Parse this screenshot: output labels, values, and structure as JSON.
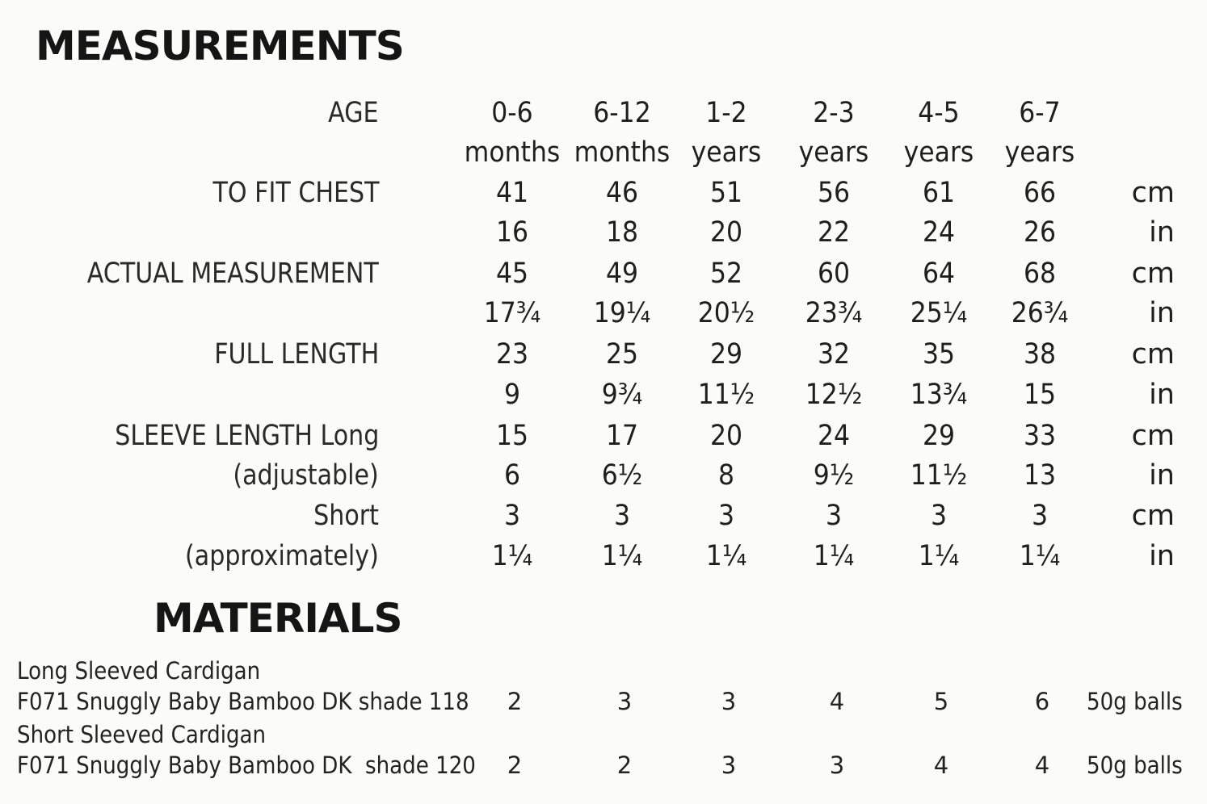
{
  "measurements": {
    "title": "MEASUREMENTS",
    "age": {
      "label": "AGE",
      "ranges": [
        "0-6",
        "6-12",
        "1-2",
        "2-3",
        "4-5",
        "6-7"
      ],
      "units": [
        "months",
        "months",
        "years",
        "years",
        "years",
        "years"
      ]
    },
    "chest": {
      "label": "TO FIT CHEST",
      "cm": [
        "41",
        "46",
        "51",
        "56",
        "61",
        "66"
      ],
      "in": [
        "16",
        "18",
        "20",
        "22",
        "24",
        "26"
      ]
    },
    "actual": {
      "label": "ACTUAL MEASUREMENT",
      "cm": [
        "45",
        "49",
        "52",
        "60",
        "64",
        "68"
      ],
      "in": [
        "17¾",
        "19¼",
        "20½",
        "23¾",
        "25¼",
        "26¾"
      ]
    },
    "full_length": {
      "label": "FULL LENGTH",
      "cm": [
        "23",
        "25",
        "29",
        "32",
        "35",
        "38"
      ],
      "in": [
        "9",
        "9¾",
        "11½",
        "12½",
        "13¾",
        "15"
      ]
    },
    "sleeve_long": {
      "label": "SLEEVE LENGTH Long",
      "label2": "(adjustable)",
      "cm": [
        "15",
        "17",
        "20",
        "24",
        "29",
        "33"
      ],
      "in": [
        "6",
        "6½",
        "8",
        "9½",
        "11½",
        "13"
      ]
    },
    "sleeve_short": {
      "label": "Short",
      "label2": "(approximately)",
      "cm": [
        "3",
        "3",
        "3",
        "3",
        "3",
        "3"
      ],
      "in": [
        "1¼",
        "1¼",
        "1¼",
        "1¼",
        "1¼",
        "1¼"
      ]
    },
    "unit_cm": "cm",
    "unit_in": "in"
  },
  "materials": {
    "title": "MATERIALS",
    "long": {
      "heading": "Long Sleeved Cardigan",
      "yarn": "F071 Snuggly Baby Bamboo DK shade 118",
      "balls": [
        "2",
        "3",
        "3",
        "4",
        "5",
        "6"
      ],
      "unit": "50g balls"
    },
    "short": {
      "heading": "Short Sleeved Cardigan",
      "yarn": "F071 Snuggly Baby Bamboo DK  shade 120",
      "balls": [
        "2",
        "2",
        "3",
        "3",
        "4",
        "4"
      ],
      "unit": "50g balls"
    }
  }
}
